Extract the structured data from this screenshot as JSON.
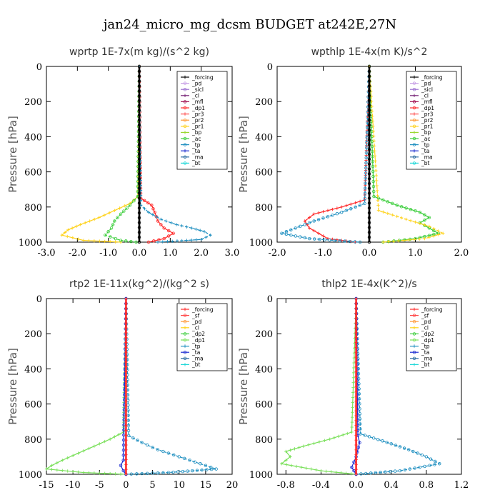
{
  "figure": {
    "title": "jan24_micro_mg_dcsm  BUDGET at242E,27N"
  },
  "chart_data": [
    {
      "type": "line",
      "title": "wprtp   1E-7x(m kg)/(s^2 kg)",
      "ylabel": "Pressure [hPa]",
      "xlim": [
        -3,
        3
      ],
      "ylim": [
        1000,
        0
      ],
      "xticks": [
        "-3.0",
        "-2.0",
        "-1.0",
        "0.0",
        "1.0",
        "2.0",
        "3.0"
      ],
      "xtick_values": [
        -3,
        -2,
        -1,
        0,
        1,
        2,
        3
      ],
      "yticks": [
        "0",
        "200",
        "400",
        "600",
        "800",
        "1000"
      ],
      "ytick_values": [
        0,
        200,
        400,
        600,
        800,
        1000
      ],
      "legend": {
        "position": "top-right",
        "entries": [
          {
            "label": "_forcing",
            "color": "#000000"
          },
          {
            "label": "_pd",
            "color": "#c8a0e6"
          },
          {
            "label": "_sicl",
            "color": "#9b6fd0"
          },
          {
            "label": "_cl",
            "color": "#7a2a7a"
          },
          {
            "label": "_mfl",
            "color": "#a01050"
          },
          {
            "label": "_dp1",
            "color": "#ff2a2a"
          },
          {
            "label": "_pr3",
            "color": "#ff4a4a"
          },
          {
            "label": "_pr2",
            "color": "#ff9a3a"
          },
          {
            "label": "_pr1",
            "color": "#ffd21a"
          },
          {
            "label": "_bp",
            "color": "#9ad830"
          },
          {
            "label": "_ac",
            "color": "#3acd3a"
          },
          {
            "label": "_tp",
            "color": "#1f8fc0"
          },
          {
            "label": "_ta",
            "color": "#1a2ad0"
          },
          {
            "label": "_ma",
            "color": "#2a6aa0"
          },
          {
            "label": "_bt",
            "color": "#20d8d8"
          }
        ]
      },
      "series": [
        {
          "name": "_pr1",
          "color": "#ffd21a",
          "x": [
            0,
            -0.05,
            -0.3,
            -0.8,
            -1.3,
            -1.9,
            -2.3,
            -2.5,
            -1.8,
            -0.6
          ],
          "y": [
            0,
            740,
            780,
            820,
            860,
            900,
            930,
            960,
            990,
            1000
          ]
        },
        {
          "name": "_ac",
          "color": "#3acd3a",
          "x": [
            0,
            -0.05,
            -0.3,
            -0.6,
            -0.8,
            -0.9,
            -1.1,
            -0.6,
            -0.1
          ],
          "y": [
            0,
            740,
            790,
            840,
            880,
            920,
            960,
            990,
            1000
          ]
        },
        {
          "name": "_dp1",
          "color": "#ff2a2a",
          "x": [
            0,
            0.05,
            0.4,
            0.5,
            0.6,
            0.8,
            1.1,
            0.8,
            0.3
          ],
          "y": [
            0,
            750,
            790,
            830,
            880,
            920,
            950,
            980,
            1000
          ]
        },
        {
          "name": "_tp",
          "color": "#1f8fc0",
          "x": [
            0,
            0.05,
            0.3,
            0.7,
            1.2,
            1.7,
            2.1,
            2.3,
            2.0,
            0.6
          ],
          "y": [
            0,
            790,
            830,
            870,
            900,
            920,
            940,
            960,
            985,
            1000
          ]
        },
        {
          "name": "_forcing",
          "color": "#000000",
          "x": [
            0,
            0,
            0
          ],
          "y": [
            0,
            500,
            1000
          ]
        }
      ]
    },
    {
      "type": "line",
      "title": "wpthlp   1E-4x(m K)/s^2",
      "ylabel": "Pressure [hPa]",
      "xlim": [
        -2,
        2
      ],
      "ylim": [
        1000,
        0
      ],
      "xticks": [
        "-2.0",
        "-1.0",
        "0.0",
        "1.0",
        "2.0"
      ],
      "xtick_values": [
        -2,
        -1,
        0,
        1,
        2
      ],
      "yticks": [
        "0",
        "200",
        "400",
        "600",
        "800",
        "1000"
      ],
      "ytick_values": [
        0,
        200,
        400,
        600,
        800,
        1000
      ],
      "legend": {
        "position": "top-right",
        "entries": [
          {
            "label": "_forcing",
            "color": "#000000"
          },
          {
            "label": "_pd",
            "color": "#c8a0e6"
          },
          {
            "label": "_sicl",
            "color": "#9b6fd0"
          },
          {
            "label": "_cl",
            "color": "#7a2a7a"
          },
          {
            "label": "_mfl",
            "color": "#a01050"
          },
          {
            "label": "_dp1",
            "color": "#ff2a2a"
          },
          {
            "label": "_pr3",
            "color": "#ff4a4a"
          },
          {
            "label": "_pr2",
            "color": "#ff9a3a"
          },
          {
            "label": "_pr1",
            "color": "#ffd21a"
          },
          {
            "label": "_bp",
            "color": "#9ad830"
          },
          {
            "label": "_ac",
            "color": "#3acd3a"
          },
          {
            "label": "_tp",
            "color": "#1f8fc0"
          },
          {
            "label": "_ta",
            "color": "#1a2ad0"
          },
          {
            "label": "_ma",
            "color": "#2a6aa0"
          },
          {
            "label": "_bt",
            "color": "#20d8d8"
          }
        ]
      },
      "series": [
        {
          "name": "_dp1",
          "color": "#ff2a2a",
          "x": [
            0,
            -0.1,
            -0.6,
            -1.2,
            -1.4,
            -1.3,
            -1.1,
            -0.9,
            -0.3
          ],
          "y": [
            0,
            760,
            800,
            840,
            880,
            920,
            950,
            980,
            1000
          ]
        },
        {
          "name": "_tp",
          "color": "#1f8fc0",
          "x": [
            0,
            -0.1,
            -0.6,
            -1.2,
            -1.6,
            -1.9,
            -1.3,
            -0.2
          ],
          "y": [
            0,
            780,
            830,
            880,
            920,
            950,
            980,
            1000
          ]
        },
        {
          "name": "_ac",
          "color": "#3acd3a",
          "x": [
            0,
            0.1,
            0.6,
            1.1,
            1.3,
            1.1,
            1.3,
            1.5,
            1.0,
            0.3
          ],
          "y": [
            0,
            740,
            790,
            830,
            860,
            890,
            920,
            950,
            980,
            1000
          ]
        },
        {
          "name": "_pr1",
          "color": "#ffd21a",
          "x": [
            0,
            0.2,
            0.8,
            1.3,
            1.6,
            1.2,
            0.3
          ],
          "y": [
            0,
            820,
            870,
            910,
            950,
            980,
            1000
          ]
        },
        {
          "name": "_forcing",
          "color": "#000000",
          "x": [
            0,
            0,
            0
          ],
          "y": [
            0,
            500,
            1000
          ]
        }
      ]
    },
    {
      "type": "line",
      "title": "rtp2   1E-11x(kg^2)/(kg^2 s)",
      "ylabel": "Pressure [hPa]",
      "xlim": [
        -15,
        20
      ],
      "ylim": [
        1000,
        0
      ],
      "xticks": [
        "-15",
        "-10",
        "-5",
        "0",
        "5",
        "10",
        "15",
        "20"
      ],
      "xtick_values": [
        -15,
        -10,
        -5,
        0,
        5,
        10,
        15,
        20
      ],
      "yticks": [
        "0",
        "200",
        "400",
        "600",
        "800",
        "1000"
      ],
      "ytick_values": [
        0,
        200,
        400,
        600,
        800,
        1000
      ],
      "legend": {
        "position": "top-right",
        "entries": [
          {
            "label": "_forcing",
            "color": "#ff2a2a"
          },
          {
            "label": "_sf",
            "color": "#ff4a4a"
          },
          {
            "label": "_pd",
            "color": "#ff9a3a"
          },
          {
            "label": "_cl",
            "color": "#ffd21a"
          },
          {
            "label": "_dp2",
            "color": "#3acd3a"
          },
          {
            "label": "_dp1",
            "color": "#7ae05a"
          },
          {
            "label": "_tp",
            "color": "#1f8fc0"
          },
          {
            "label": "_ta",
            "color": "#1a2ad0"
          },
          {
            "label": "_ma",
            "color": "#2a6aa0"
          },
          {
            "label": "_bt",
            "color": "#20d8d8"
          }
        ]
      },
      "series": [
        {
          "name": "_dp1",
          "color": "#7ae05a",
          "x": [
            0,
            -0.5,
            -3,
            -6,
            -9,
            -12,
            -14,
            -15,
            -8,
            0
          ],
          "y": [
            0,
            760,
            800,
            840,
            880,
            920,
            950,
            970,
            990,
            1000
          ]
        },
        {
          "name": "_tp",
          "color": "#1f8fc0",
          "x": [
            0,
            0.5,
            3,
            6,
            9,
            12,
            15,
            17,
            8,
            0
          ],
          "y": [
            0,
            780,
            820,
            860,
            890,
            920,
            950,
            970,
            990,
            1000
          ]
        },
        {
          "name": "_ta",
          "color": "#1a2ad0",
          "x": [
            0,
            -0.5,
            -1,
            -0.5,
            0
          ],
          "y": [
            0,
            920,
            950,
            980,
            1000
          ]
        },
        {
          "name": "_forcing",
          "color": "#ff2a2a",
          "x": [
            0,
            0,
            0
          ],
          "y": [
            0,
            500,
            1000
          ]
        }
      ]
    },
    {
      "type": "line",
      "title": "thlp2   1E-4x(K^2)/s",
      "ylabel": "Pressure [hPa]",
      "xlim": [
        -0.9,
        1.2
      ],
      "ylim": [
        1000,
        0
      ],
      "xticks": [
        "-0.8",
        "-0.4",
        "0.0",
        "0.4",
        "0.8",
        "1.2"
      ],
      "xtick_values": [
        -0.8,
        -0.4,
        0,
        0.4,
        0.8,
        1.2
      ],
      "yticks": [
        "0",
        "200",
        "400",
        "600",
        "800",
        "1000"
      ],
      "ytick_values": [
        0,
        200,
        400,
        600,
        800,
        1000
      ],
      "legend": {
        "position": "top-right",
        "entries": [
          {
            "label": "_forcing",
            "color": "#ff2a2a"
          },
          {
            "label": "_sf",
            "color": "#ff4a4a"
          },
          {
            "label": "_pd",
            "color": "#ff9a3a"
          },
          {
            "label": "_cl",
            "color": "#ffd21a"
          },
          {
            "label": "_dp2",
            "color": "#3acd3a"
          },
          {
            "label": "_dp1",
            "color": "#7ae05a"
          },
          {
            "label": "_tp",
            "color": "#1f8fc0"
          },
          {
            "label": "_ta",
            "color": "#1a2ad0"
          },
          {
            "label": "_ma",
            "color": "#2a6aa0"
          },
          {
            "label": "_bt",
            "color": "#20d8d8"
          }
        ]
      },
      "series": [
        {
          "name": "_dp1",
          "color": "#7ae05a",
          "x": [
            0,
            -0.05,
            -0.3,
            -0.6,
            -0.8,
            -0.75,
            -0.85,
            -0.4,
            0
          ],
          "y": [
            0,
            760,
            800,
            840,
            870,
            900,
            940,
            980,
            1000
          ]
        },
        {
          "name": "_tp",
          "color": "#1f8fc0",
          "x": [
            0,
            0.05,
            0.3,
            0.6,
            0.8,
            0.95,
            0.5,
            0
          ],
          "y": [
            0,
            770,
            810,
            860,
            900,
            940,
            980,
            1000
          ]
        },
        {
          "name": "_ta",
          "color": "#1a2ad0",
          "x": [
            0,
            0.02,
            0.04,
            0.0,
            -0.05,
            0
          ],
          "y": [
            0,
            780,
            820,
            900,
            960,
            1000
          ]
        },
        {
          "name": "_forcing",
          "color": "#ff2a2a",
          "x": [
            0,
            0,
            0
          ],
          "y": [
            0,
            500,
            1000
          ]
        }
      ]
    }
  ]
}
